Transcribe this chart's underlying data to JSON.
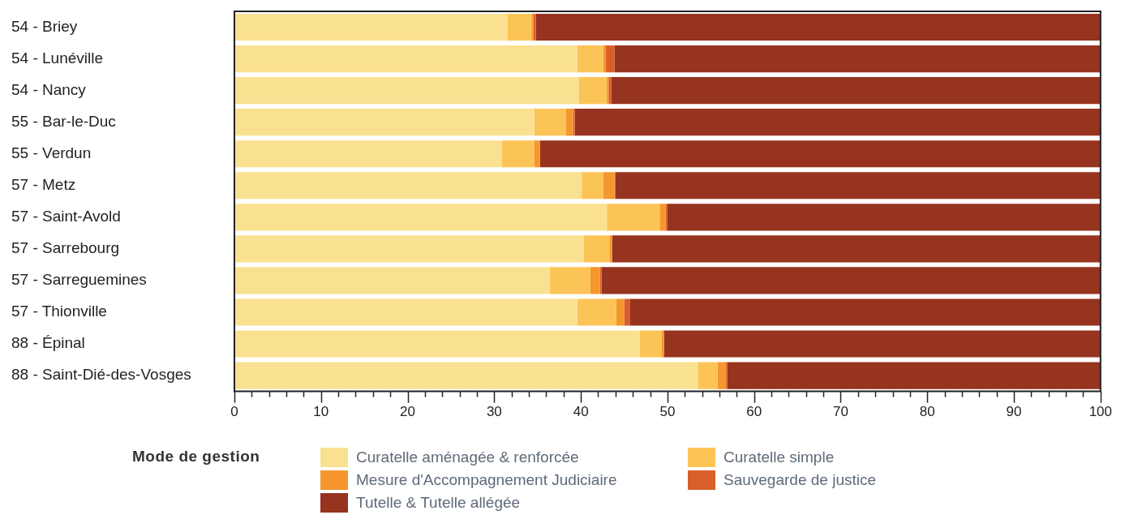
{
  "chart_data": {
    "type": "bar",
    "orientation": "horizontal",
    "stacked": true,
    "categories": [
      "54 - Briey",
      "54 - Lunéville",
      "54 - Nancy",
      "55 - Bar-le-Duc",
      "55 - Verdun",
      "57 - Metz",
      "57 - Saint-Avold",
      "57 - Sarrebourg",
      "57 - Sarreguemines",
      "57 - Thionville",
      "88 - Épinal",
      "88 - Saint-Dié-des-Vosges"
    ],
    "series": [
      {
        "name": "Curatelle aménagée & renforcée",
        "color": "#fae191",
        "values": [
          31.5,
          39.6,
          39.8,
          34.6,
          30.9,
          40.1,
          43.0,
          40.3,
          36.4,
          39.6,
          46.8,
          53.5
        ]
      },
      {
        "name": "Curatelle simple",
        "color": "#fcc457",
        "values": [
          2.8,
          3.0,
          3.2,
          3.7,
          3.7,
          2.5,
          6.1,
          3.0,
          4.7,
          4.5,
          2.5,
          2.3
        ]
      },
      {
        "name": "Mesure d'Accompagnement Judiciaire",
        "color": "#f5962f",
        "values": [
          0.2,
          0.3,
          0.2,
          0.8,
          0.7,
          1.3,
          0.7,
          0.3,
          1.1,
          0.9,
          0.3,
          0.9
        ]
      },
      {
        "name": "Sauvegarde de justice",
        "color": "#d95f2a",
        "values": [
          0.3,
          1.0,
          0.3,
          0.2,
          0,
          0.1,
          0.2,
          0,
          0.2,
          0.7,
          0,
          0.2
        ]
      },
      {
        "name": "Tutelle & Tutelle allégée",
        "color": "#96341f",
        "values": [
          65.2,
          56.1,
          56.5,
          60.7,
          64.7,
          56.0,
          50.0,
          56.4,
          57.6,
          54.3,
          50.4,
          43.1
        ]
      }
    ],
    "xlim": [
      0,
      100
    ],
    "xticks": [
      0,
      {
        "value": 2,
        "label": null
      },
      {
        "value": 4,
        "label": null
      },
      {
        "value": 6,
        "label": null
      },
      {
        "value": 8,
        "label": null
      },
      10,
      {
        "value": 12,
        "label": null
      },
      {
        "value": 14,
        "label": null
      },
      {
        "value": 16,
        "label": null
      },
      {
        "value": 18,
        "label": null
      },
      20,
      {
        "value": 22,
        "label": null
      },
      {
        "value": 24,
        "label": null
      },
      {
        "value": 26,
        "label": null
      },
      {
        "value": 28,
        "label": null
      },
      30,
      {
        "value": 32,
        "label": null
      },
      {
        "value": 34,
        "label": null
      },
      {
        "value": 36,
        "label": null
      },
      {
        "value": 38,
        "label": null
      },
      40,
      {
        "value": 42,
        "label": null
      },
      {
        "value": 44,
        "label": null
      },
      {
        "value": 46,
        "label": null
      },
      {
        "value": 48,
        "label": null
      },
      50,
      {
        "value": 52,
        "label": null
      },
      {
        "value": 54,
        "label": null
      },
      {
        "value": 56,
        "label": null
      },
      {
        "value": 58,
        "label": null
      },
      60,
      {
        "value": 62,
        "label": null
      },
      {
        "value": 64,
        "label": null
      },
      {
        "value": 66,
        "label": null
      },
      {
        "value": 68,
        "label": null
      },
      70,
      {
        "value": 72,
        "label": null
      },
      {
        "value": 74,
        "label": null
      },
      {
        "value": 76,
        "label": null
      },
      {
        "value": 78,
        "label": null
      },
      80,
      {
        "value": 82,
        "label": null
      },
      {
        "value": 84,
        "label": null
      },
      {
        "value": 86,
        "label": null
      },
      {
        "value": 88,
        "label": null
      },
      90,
      {
        "value": 92,
        "label": null
      },
      {
        "value": 94,
        "label": null
      },
      {
        "value": 96,
        "label": null
      },
      {
        "value": 98,
        "label": null
      },
      100
    ],
    "legend_title": "Mode de gestion",
    "legend": "bottom",
    "grid": false
  }
}
